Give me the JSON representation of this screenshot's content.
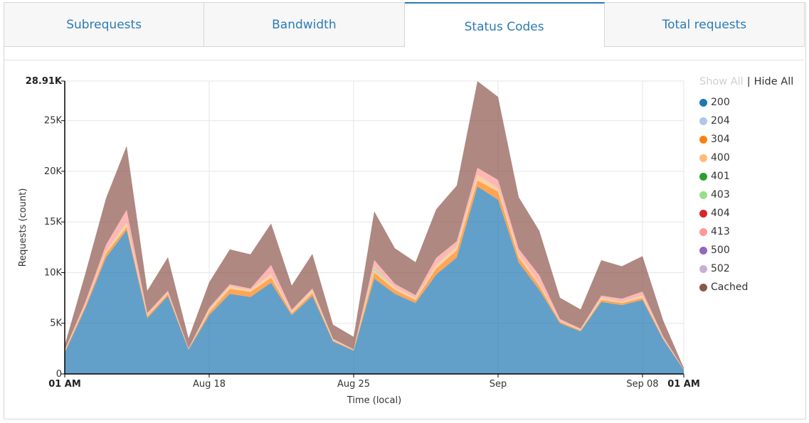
{
  "tabs": [
    {
      "label": "Subrequests",
      "active": false
    },
    {
      "label": "Bandwidth",
      "active": false
    },
    {
      "label": "Status Codes",
      "active": true
    },
    {
      "label": "Total requests",
      "active": false
    }
  ],
  "legend": {
    "show_all": "Show All",
    "separator": "|",
    "hide_all": "Hide All",
    "items": [
      {
        "label": "200",
        "color": "#1f77b4"
      },
      {
        "label": "204",
        "color": "#aec7e8"
      },
      {
        "label": "304",
        "color": "#ff7f0e"
      },
      {
        "label": "400",
        "color": "#ffbb78"
      },
      {
        "label": "401",
        "color": "#2ca02c"
      },
      {
        "label": "403",
        "color": "#98df8a"
      },
      {
        "label": "404",
        "color": "#d62728"
      },
      {
        "label": "413",
        "color": "#ff9896"
      },
      {
        "label": "500",
        "color": "#9467bd"
      },
      {
        "label": "502",
        "color": "#c5b0d5"
      },
      {
        "label": "Cached",
        "color": "#8c564b"
      }
    ]
  },
  "chart_data": {
    "type": "area",
    "stacked": true,
    "xlabel": "Time (local)",
    "ylabel": "Requests (count)",
    "ylim": [
      0,
      28910
    ],
    "y_ticks": [
      {
        "value": 0,
        "label": "0"
      },
      {
        "value": 5000,
        "label": "5K"
      },
      {
        "value": 10000,
        "label": "10K"
      },
      {
        "value": 15000,
        "label": "15K"
      },
      {
        "value": 20000,
        "label": "20K"
      },
      {
        "value": 25000,
        "label": "25K"
      },
      {
        "value": 28910,
        "label": "28.91K",
        "bold": true
      }
    ],
    "x_ticks": [
      {
        "index": 0,
        "label": "01 AM",
        "bold": true
      },
      {
        "index": 7,
        "label": "Aug 18"
      },
      {
        "index": 14,
        "label": "Aug 25"
      },
      {
        "index": 21,
        "label": "Sep"
      },
      {
        "index": 28,
        "label": "Sep 08"
      },
      {
        "index": 30,
        "label": "01 AM",
        "bold": true
      }
    ],
    "grid": true,
    "legend_position": "right",
    "series": [
      {
        "name": "200",
        "color": "#1f77b4",
        "values": [
          2100,
          6500,
          11500,
          14200,
          5500,
          7700,
          2400,
          5800,
          7900,
          7600,
          9000,
          5800,
          7700,
          3200,
          2300,
          9400,
          7900,
          7000,
          9800,
          11500,
          18500,
          17200,
          11000,
          8300,
          5000,
          4200,
          7100,
          6800,
          7300,
          3400,
          400
        ]
      },
      {
        "name": "204",
        "color": "#aec7e8",
        "values": [
          0,
          0,
          0,
          0,
          0,
          0,
          0,
          0,
          0,
          0,
          0,
          0,
          0,
          0,
          0,
          0,
          0,
          0,
          0,
          0,
          0,
          0,
          0,
          0,
          0,
          0,
          0,
          0,
          0,
          0,
          0
        ]
      },
      {
        "name": "304",
        "color": "#ff7f0e",
        "values": [
          100,
          200,
          400,
          300,
          200,
          200,
          50,
          300,
          500,
          500,
          500,
          200,
          300,
          100,
          50,
          600,
          400,
          300,
          600,
          700,
          600,
          800,
          500,
          400,
          150,
          100,
          200,
          200,
          200,
          100,
          20
        ]
      },
      {
        "name": "400",
        "color": "#ffbb78",
        "values": [
          50,
          100,
          200,
          300,
          100,
          100,
          30,
          200,
          200,
          150,
          300,
          100,
          200,
          50,
          30,
          300,
          200,
          150,
          300,
          300,
          500,
          300,
          300,
          200,
          50,
          50,
          200,
          100,
          200,
          50,
          10
        ]
      },
      {
        "name": "401",
        "color": "#2ca02c",
        "values": [
          0,
          0,
          0,
          0,
          0,
          0,
          0,
          0,
          0,
          0,
          0,
          0,
          0,
          0,
          0,
          50,
          0,
          0,
          0,
          0,
          0,
          0,
          0,
          0,
          0,
          0,
          0,
          0,
          0,
          0,
          0
        ]
      },
      {
        "name": "403",
        "color": "#98df8a",
        "values": [
          20,
          30,
          50,
          100,
          20,
          20,
          10,
          50,
          50,
          30,
          50,
          30,
          50,
          20,
          10,
          200,
          50,
          30,
          50,
          100,
          50,
          50,
          50,
          30,
          20,
          20,
          30,
          30,
          30,
          20,
          5
        ]
      },
      {
        "name": "404",
        "color": "#d62728",
        "values": [
          0,
          0,
          0,
          0,
          0,
          0,
          0,
          0,
          0,
          0,
          0,
          0,
          0,
          0,
          0,
          0,
          0,
          0,
          0,
          0,
          0,
          0,
          0,
          0,
          0,
          0,
          0,
          0,
          0,
          0,
          0
        ]
      },
      {
        "name": "413",
        "color": "#ff9896",
        "values": [
          100,
          300,
          600,
          1300,
          200,
          200,
          30,
          200,
          200,
          150,
          900,
          200,
          200,
          100,
          30,
          700,
          350,
          300,
          700,
          500,
          700,
          800,
          500,
          800,
          200,
          100,
          200,
          300,
          400,
          150,
          15
        ]
      },
      {
        "name": "500",
        "color": "#9467bd",
        "values": [
          0,
          0,
          0,
          0,
          0,
          0,
          0,
          0,
          0,
          0,
          0,
          0,
          0,
          0,
          0,
          0,
          0,
          0,
          0,
          0,
          0,
          0,
          0,
          0,
          0,
          0,
          0,
          0,
          0,
          0,
          0
        ]
      },
      {
        "name": "502",
        "color": "#c5b0d5",
        "values": [
          0,
          0,
          0,
          0,
          0,
          0,
          0,
          0,
          0,
          0,
          0,
          0,
          0,
          0,
          0,
          0,
          0,
          0,
          0,
          0,
          0,
          0,
          0,
          0,
          0,
          0,
          0,
          0,
          0,
          0,
          0
        ]
      },
      {
        "name": "Cached",
        "color": "#8c564b",
        "values": [
          500,
          2800,
          4600,
          6300,
          2200,
          3300,
          1000,
          2500,
          3450,
          3370,
          4100,
          2400,
          3400,
          1400,
          1250,
          4800,
          3500,
          3250,
          4800,
          5500,
          8550,
          8200,
          5100,
          4400,
          2100,
          1900,
          3500,
          3200,
          3500,
          1580,
          150
        ]
      }
    ]
  }
}
